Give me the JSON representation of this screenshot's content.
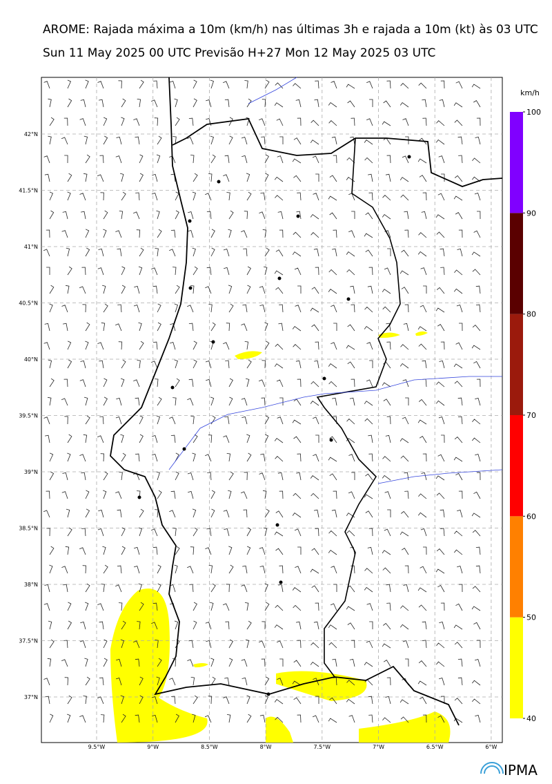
{
  "header": {
    "title": "AROME: Rajada máxima a 10m (km/h) nas últimas 3h e rajada a 10m (kt) às 03 UTC",
    "subtitle": "Sun 11 May 2025 00 UTC Previsão H+27 Mon 12 May 2025 03 UTC"
  },
  "map": {
    "lat_labels": [
      "42°N",
      "41.5°N",
      "41°N",
      "40.5°N",
      "40°N",
      "39.5°N",
      "39°N",
      "38.5°N",
      "38°N",
      "37.5°N",
      "37°N"
    ],
    "lon_labels": [
      "9.5°W",
      "9°W",
      "8.5°W",
      "8°W",
      "7.5°W",
      "7°W",
      "6.5°W",
      "6°W"
    ]
  },
  "colorbar": {
    "unit": "km/h",
    "levels": [
      40,
      50,
      60,
      70,
      80,
      90,
      100
    ],
    "colors": [
      "#ffff00",
      "#ff8000",
      "#ff0000",
      "#9b1a0c",
      "#5a0000",
      "#8000ff"
    ]
  },
  "logo": "IPMA"
}
